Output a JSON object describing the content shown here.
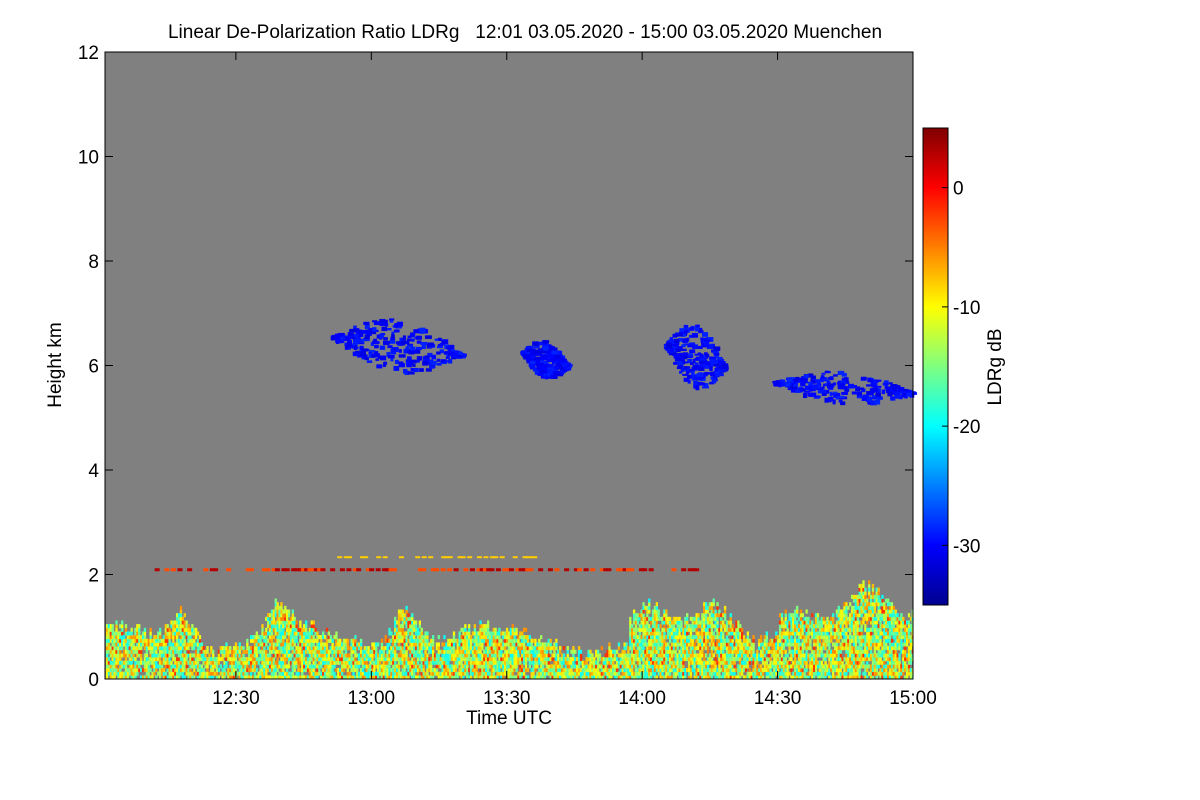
{
  "chart_data": {
    "type": "heatmap",
    "title": "Linear De-Polarization Ratio LDRg   12:01 03.05.2020 - 15:00 03.05.2020 Muenchen",
    "xlabel": "Time UTC",
    "ylabel": "Height km",
    "xlim": [
      12.0167,
      15.0
    ],
    "ylim": [
      0,
      12
    ],
    "x_ticks": [
      {
        "value": 12.5,
        "label": "12:30"
      },
      {
        "value": 13.0,
        "label": "13:00"
      },
      {
        "value": 13.5,
        "label": "13:30"
      },
      {
        "value": 14.0,
        "label": "14:00"
      },
      {
        "value": 14.5,
        "label": "14:30"
      },
      {
        "value": 15.0,
        "label": "15:00"
      }
    ],
    "y_ticks": [
      {
        "value": 0,
        "label": "0"
      },
      {
        "value": 2,
        "label": "2"
      },
      {
        "value": 4,
        "label": "4"
      },
      {
        "value": 6,
        "label": "6"
      },
      {
        "value": 8,
        "label": "8"
      },
      {
        "value": 10,
        "label": "10"
      },
      {
        "value": 12,
        "label": "12"
      }
    ],
    "colorbar": {
      "label": "LDRg dB",
      "range": [
        -35,
        5
      ],
      "ticks": [
        {
          "value": 0,
          "label": "0"
        },
        {
          "value": -10,
          "label": "-10"
        },
        {
          "value": -20,
          "label": "-20"
        },
        {
          "value": -30,
          "label": "-30"
        }
      ],
      "colormap": [
        "#00008f",
        "#0000ff",
        "#007fff",
        "#00ffff",
        "#7fff7f",
        "#ffff00",
        "#ff7f00",
        "#ff0000",
        "#7f0000"
      ]
    },
    "background_color": "#808080",
    "features": [
      {
        "name": "boundary layer depolarization",
        "x_range": [
          12.02,
          15.0
        ],
        "y_range": [
          0.0,
          2.0
        ],
        "ldr_dB_range": [
          -20,
          -5
        ]
      },
      {
        "name": "cloud 13:00",
        "x_range": [
          12.85,
          13.33
        ],
        "y_range": [
          5.9,
          6.9
        ],
        "ldr_dB": -30
      },
      {
        "name": "cloud 13:45",
        "x_range": [
          13.55,
          13.72
        ],
        "y_range": [
          5.8,
          6.5
        ],
        "ldr_dB": -30
      },
      {
        "name": "cloud 14:15",
        "x_range": [
          14.08,
          14.3
        ],
        "y_range": [
          5.6,
          6.8
        ],
        "ldr_dB": -30
      },
      {
        "name": "cloud 14:40",
        "x_range": [
          14.48,
          15.0
        ],
        "y_range": [
          5.3,
          5.9
        ],
        "ldr_dB": -30
      }
    ]
  }
}
